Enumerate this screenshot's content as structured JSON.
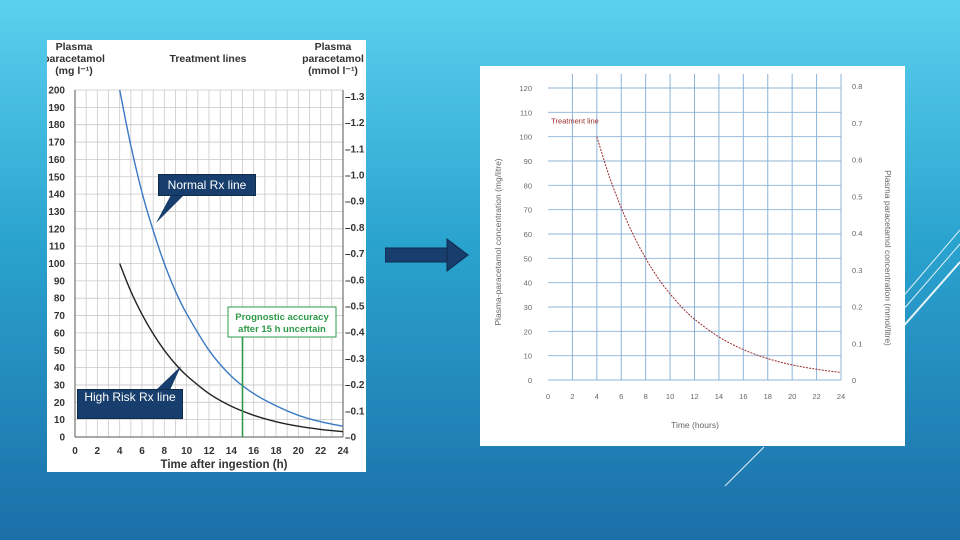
{
  "colors": {
    "accent": "#173e6c",
    "grid_left": "#c9c9c9",
    "line_normal": "#3a79c2",
    "line_high": "#222222",
    "prognostic": "#2e9a48",
    "grid_right": "#8cb4d8",
    "treatment_right": "#9a2a2a"
  },
  "callouts": {
    "normal": "Normal Rx line",
    "high": "High Risk Rx line"
  },
  "chart_data": [
    {
      "type": "line",
      "title": "Treatment lines",
      "ylabel_left": [
        "Plasma",
        "paracetamol",
        "(mg l⁻¹)"
      ],
      "ylabel_right": [
        "Plasma",
        "paracetamol",
        "(mmol l⁻¹)"
      ],
      "xlabel": "Time after ingestion (h)",
      "xlim": [
        0,
        24
      ],
      "ylim": [
        0,
        200
      ],
      "x_ticks": [
        0,
        2,
        4,
        6,
        8,
        10,
        12,
        14,
        16,
        18,
        20,
        22,
        24
      ],
      "y_ticks": [
        0,
        10,
        20,
        30,
        40,
        50,
        60,
        70,
        80,
        90,
        100,
        110,
        120,
        130,
        140,
        150,
        160,
        170,
        180,
        190,
        200
      ],
      "y2_ticks": [
        {
          "value": 0,
          "label": "–0"
        },
        {
          "value": 0.1,
          "label": "–0.1"
        },
        {
          "value": 0.2,
          "label": "–0.2"
        },
        {
          "value": 0.3,
          "label": "–0.3"
        },
        {
          "value": 0.4,
          "label": "–0.4"
        },
        {
          "value": 0.5,
          "label": "–0.5"
        },
        {
          "value": 0.6,
          "label": "–0.6"
        },
        {
          "value": 0.7,
          "label": "–0.7"
        },
        {
          "value": 0.8,
          "label": "–0.8"
        },
        {
          "value": 0.9,
          "label": "–0.9"
        },
        {
          "value": 1.0,
          "label": "–1.0"
        },
        {
          "value": 1.1,
          "label": "–1.1"
        },
        {
          "value": 1.2,
          "label": "–1.2"
        },
        {
          "value": 1.3,
          "label": "–1.3"
        }
      ],
      "y2_per_y": 0.0066225,
      "grid": true,
      "series": [
        {
          "key": "normal",
          "x": [
            4,
            5,
            6,
            7,
            8,
            9,
            10,
            12,
            14,
            16,
            18,
            20,
            22,
            24
          ],
          "y": [
            200,
            168,
            141,
            119,
            100,
            84,
            71,
            50,
            35,
            25,
            18,
            12.5,
            8.8,
            6.2
          ]
        },
        {
          "key": "high",
          "x": [
            4,
            5,
            6,
            7,
            8,
            9,
            10,
            12,
            14,
            16,
            18,
            20,
            22,
            24
          ],
          "y": [
            100,
            84,
            70.7,
            59.5,
            50,
            42,
            35.4,
            25,
            17.7,
            12.5,
            8.8,
            6.2,
            4.4,
            3.1
          ]
        }
      ],
      "annotation": {
        "lines": [
          "Prognostic accuracy",
          "after 15 h uncertain"
        ],
        "x": 15
      }
    },
    {
      "type": "line",
      "ylabel": "Plasma-paracetamol concentration (mg/litre)",
      "y2label": "Plasma paracetamol concentration (mmol/litre)",
      "xlabel": "Time (hours)",
      "xlim": [
        0,
        24
      ],
      "ylim": [
        0,
        120
      ],
      "x_ticks": [
        0,
        2,
        4,
        6,
        8,
        10,
        12,
        14,
        16,
        18,
        20,
        22,
        24
      ],
      "y_ticks": [
        0,
        10,
        20,
        30,
        40,
        50,
        60,
        70,
        80,
        90,
        100,
        110,
        120
      ],
      "y2_ticks": [
        0,
        0.1,
        0.2,
        0.3,
        0.4,
        0.5,
        0.6,
        0.7,
        0.8
      ],
      "y2_per_y": 0.0066225,
      "grid": true,
      "series": [
        {
          "name": "Treatment line",
          "x": [
            4,
            5,
            6,
            7,
            8,
            9,
            10,
            11,
            12,
            14,
            16,
            18,
            20,
            22,
            24
          ],
          "y": [
            100,
            84,
            70.7,
            59.5,
            50,
            42,
            35.4,
            29.7,
            25,
            17.7,
            12.5,
            8.8,
            6.2,
            4.4,
            3.1
          ]
        }
      ]
    }
  ]
}
